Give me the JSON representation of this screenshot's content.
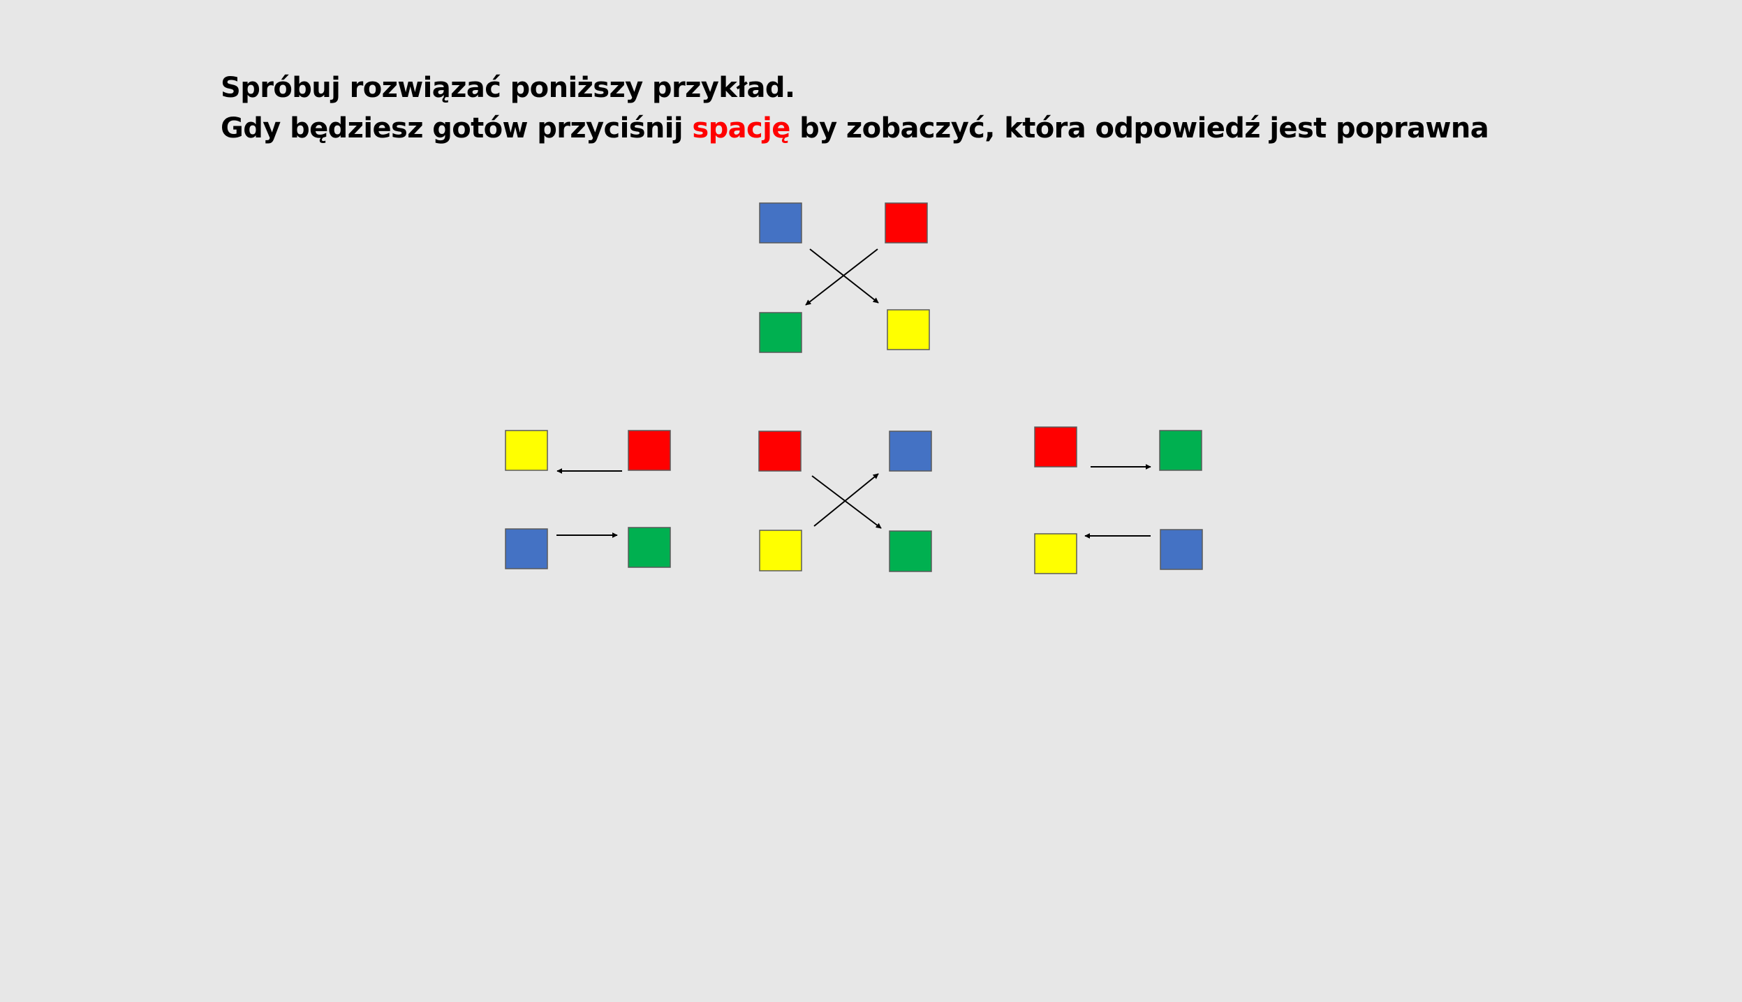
{
  "instructions": {
    "line1": "Spróbuj rozwiązać poniższy przykład.",
    "line2_before": "Gdy będziesz gotów przyciśnij ",
    "line2_highlight": "spację",
    "line2_after": " by zobaczyć, która odpowiedź jest poprawna"
  },
  "colors": {
    "background": "#e7e7e7",
    "text": "#000000",
    "highlight": "#ff0000",
    "blue": "#4472c4",
    "red": "#ff0000",
    "green": "#00b050",
    "yellow": "#ffff00",
    "arrow": "#000000"
  },
  "puzzle": {
    "example": {
      "squares": {
        "top_left": "blue",
        "top_right": "red",
        "bottom_left": "green",
        "bottom_right": "yellow"
      },
      "arrows": [
        "top-right to bottom-left",
        "top-left to bottom-right"
      ]
    },
    "options": [
      {
        "squares": {
          "top_left": "yellow",
          "top_right": "red",
          "bottom_left": "blue",
          "bottom_right": "green"
        },
        "arrows": [
          "top-right to top-left",
          "bottom-left to bottom-right"
        ]
      },
      {
        "squares": {
          "top_left": "red",
          "top_right": "blue",
          "bottom_left": "yellow",
          "bottom_right": "green"
        },
        "arrows": [
          "bottom-left to top-right",
          "top-left to bottom-right"
        ]
      },
      {
        "squares": {
          "top_left": "red",
          "top_right": "green",
          "bottom_left": "yellow",
          "bottom_right": "blue"
        },
        "arrows": [
          "top-left to top-right",
          "bottom-right to bottom-left"
        ]
      }
    ]
  }
}
